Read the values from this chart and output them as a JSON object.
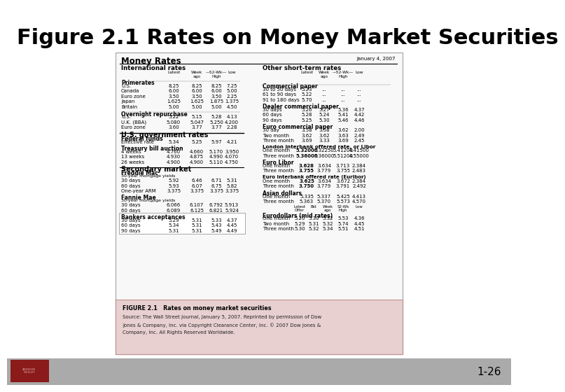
{
  "title": "Figure 2.1 Rates on Money Market Securities",
  "title_fontsize": 22,
  "background_color": "#ffffff",
  "slide_footer_color": "#aaaaaa",
  "box_bg": "#ffffff",
  "box_border": "#cccccc",
  "caption_bg": "#e8d0d0",
  "caption_border": "#c09090",
  "money_rates_title": "Money Rates",
  "date_label": "January 4, 2007",
  "figure_label": "FIGURE 2.1   Rates on money market securities",
  "source_line1": "Source: The Wall Street Journal, January 5, 2007. Reprinted by permission of Dow",
  "source_line2": "Jones & Company, Inc. via Copyright Clearance Center, Inc. © 2007 Dow Jones &",
  "source_line3": "Company, Inc. All Rights Reserved Worldwide.",
  "page_number": "1-26",
  "red_box_color": "#8B1A1A",
  "dark_red_logo_color": "#7a1515"
}
